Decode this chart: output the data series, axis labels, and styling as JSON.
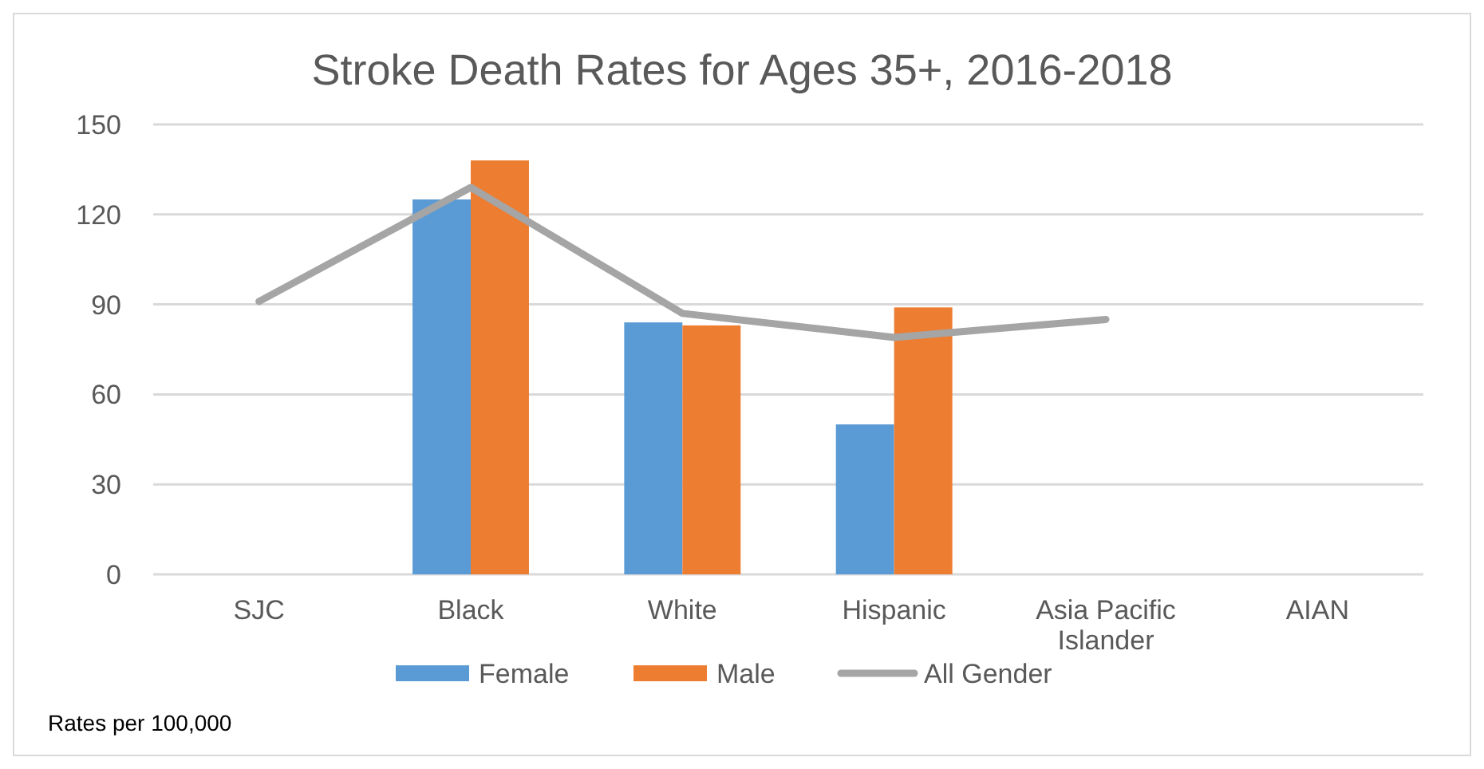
{
  "chart_data": {
    "type": "bar",
    "title": "Stroke Death Rates for Ages 35+, 2016-2018",
    "categories": [
      "SJC",
      "Black",
      "White",
      "Hispanic",
      "Asia Pacific Islander",
      "AIAN"
    ],
    "series": [
      {
        "name": "Female",
        "color": "#5b9bd5",
        "values": [
          null,
          125,
          84,
          50,
          null,
          null
        ]
      },
      {
        "name": "Male",
        "color": "#ed7d31",
        "values": [
          null,
          138,
          83,
          89,
          null,
          null
        ]
      },
      {
        "name": "All Gender",
        "type": "line",
        "color": "#a5a5a5",
        "values": [
          91,
          129,
          87,
          79,
          85,
          null
        ]
      }
    ],
    "ylim": [
      0,
      150
    ],
    "yticks": [
      0,
      30,
      60,
      90,
      120,
      150
    ],
    "grid": "y",
    "legend": "bottom",
    "marker": "none",
    "annotations": [
      "Rates per 100,000"
    ]
  }
}
